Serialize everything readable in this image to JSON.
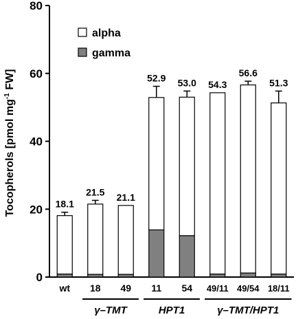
{
  "chart_data": {
    "type": "bar",
    "stacked": true,
    "ylabel": {
      "main": "Tocopherols [pmol mg",
      "sup": "-1",
      "tail": " FW]"
    },
    "ylim": [
      0,
      80
    ],
    "yticks": [
      0,
      20,
      40,
      60,
      80
    ],
    "grid": false,
    "legend_position": "top-left",
    "categories": [
      "wt",
      "18",
      "49",
      "11",
      "54",
      "49/11",
      "49/54",
      "18/11"
    ],
    "series": [
      {
        "name": "gamma",
        "color": "#808080",
        "values": [
          0.9,
          0.8,
          0.8,
          13.9,
          12.2,
          0.9,
          1.2,
          0.9
        ],
        "errors": [
          0,
          0,
          0,
          0.6,
          2.8,
          0,
          0,
          0
        ]
      },
      {
        "name": "alpha",
        "color": "#ffffff",
        "values": [
          17.2,
          20.7,
          20.3,
          39.0,
          40.8,
          53.4,
          55.4,
          50.4
        ],
        "errors": [
          1.0,
          1.1,
          0,
          3.3,
          1.8,
          0,
          1.1,
          3.5
        ]
      }
    ],
    "totals": [
      "18.1",
      "21.5",
      "21.1",
      "52.9",
      "53.0",
      "54.3",
      "56.6",
      "51.3"
    ],
    "groups": [
      {
        "label": "γ–TMT",
        "from": 1,
        "to": 2
      },
      {
        "label": "HPT1",
        "from": 3,
        "to": 4
      },
      {
        "label": "γ–TMT/HPT1",
        "from": 5,
        "to": 7
      }
    ]
  }
}
